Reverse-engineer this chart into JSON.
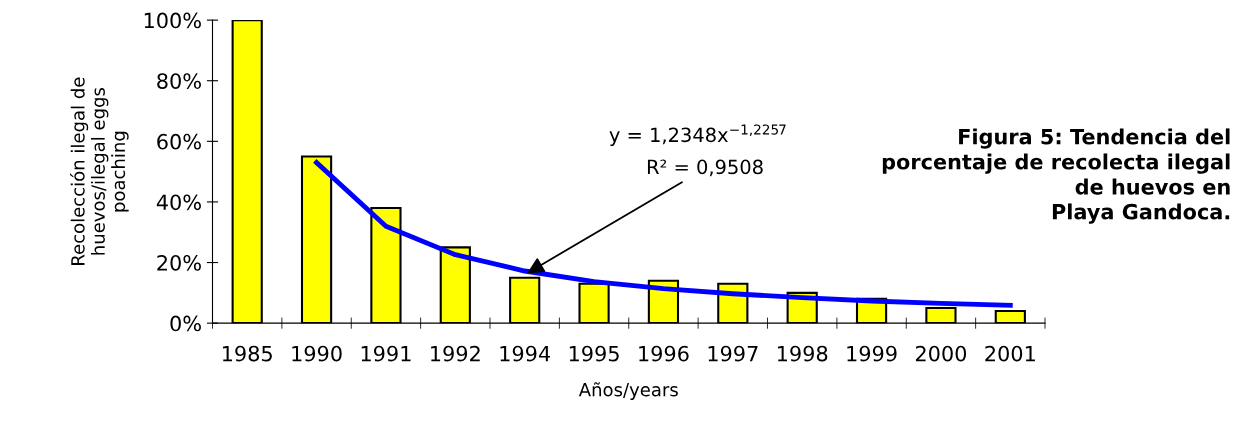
{
  "chart_data": {
    "type": "bar",
    "title": "Figura 5: Tendencia del\nporcentaje de recolecta ilegal\nde huevos en\nPlaya Gandoca.",
    "xlabel": "Años/years",
    "ylabel": "Recolección ilegal de\nhuevos/ilegal eggs\npoaching",
    "categories": [
      "1985",
      "1990",
      "1991",
      "1992",
      "1994",
      "1995",
      "1996",
      "1997",
      "1998",
      "1999",
      "2000",
      "2001"
    ],
    "series": [
      {
        "color": "#ffff00",
        "values": [
          100,
          55,
          38,
          25,
          15,
          13,
          14,
          13,
          10,
          8,
          5,
          4
        ]
      },
      {
        "type": "line",
        "color": "#0000ff",
        "values": [
          null,
          53,
          32,
          22.6,
          17.2,
          13.7,
          11.4,
          9.7,
          8.4,
          7.3,
          6.5,
          5.9
        ]
      }
    ],
    "annotations": [
      "y = 1,2348x$^{−1,2257}$",
      {
        "text": "R² = 0,9508",
        "x": "1994",
        "y": 16
      }
    ],
    "ylim": [
      0,
      100
    ],
    "yticks": [
      {
        "value": 0,
        "label": "0%"
      },
      {
        "value": 20,
        "label": "20%"
      },
      {
        "value": 40,
        "label": "40%"
      },
      {
        "value": 60,
        "label": "60%"
      },
      {
        "value": 80,
        "label": "80%"
      },
      {
        "value": 100,
        "label": "100%"
      }
    ],
    "grid": false,
    "legend": false
  }
}
